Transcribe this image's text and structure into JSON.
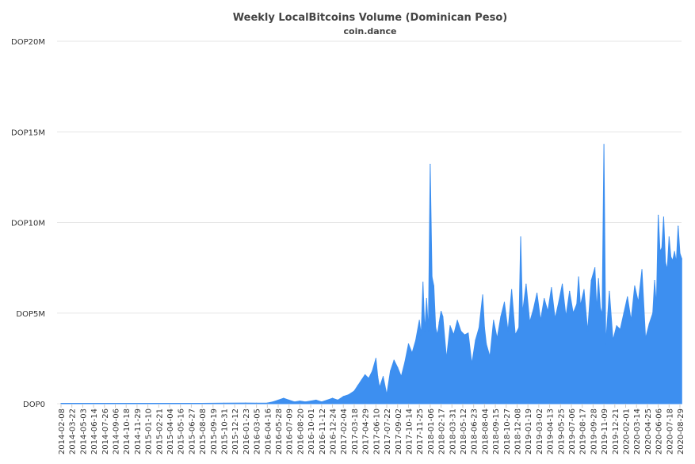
{
  "chart_data": {
    "type": "area",
    "title": "Weekly LocalBitcoins Volume (Dominican Peso)",
    "subtitle": "coin.dance",
    "xlabel": "",
    "ylabel": "",
    "ylim": [
      0,
      20000000
    ],
    "grid": true,
    "legend": "none",
    "color": "#3d8ff0",
    "y_ticks": [
      {
        "value": 0,
        "label": "DOP0"
      },
      {
        "value": 5000000,
        "label": "DOP5M"
      },
      {
        "value": 10000000,
        "label": "DOP10M"
      },
      {
        "value": 15000000,
        "label": "DOP15M"
      },
      {
        "value": 20000000,
        "label": "DOP20M"
      }
    ],
    "x_tick_labels": [
      "2014-02-08",
      "2014-03-22",
      "2014-05-03",
      "2014-06-14",
      "2014-07-26",
      "2014-09-06",
      "2014-10-18",
      "2014-11-29",
      "2015-01-10",
      "2015-02-21",
      "2015-04-04",
      "2015-05-16",
      "2015-06-27",
      "2015-08-08",
      "2015-09-19",
      "2015-10-31",
      "2015-12-12",
      "2016-01-23",
      "2016-03-05",
      "2016-04-16",
      "2016-05-28",
      "2016-07-09",
      "2016-08-20",
      "2016-10-01",
      "2016-11-12",
      "2016-12-24",
      "2017-02-04",
      "2017-03-18",
      "2017-04-29",
      "2017-06-10",
      "2017-07-22",
      "2017-09-02",
      "2017-10-14",
      "2017-11-25",
      "2018-01-06",
      "2018-02-17",
      "2018-03-31",
      "2018-05-12",
      "2018-06-23",
      "2018-08-04",
      "2018-09-15",
      "2018-10-27",
      "2018-12-08",
      "2019-01-19",
      "2019-03-02",
      "2019-04-13",
      "2019-05-25",
      "2019-07-06",
      "2019-08-17",
      "2019-09-28",
      "2019-11-09",
      "2019-12-21",
      "2020-02-01",
      "2020-03-14",
      "2020-04-25",
      "2020-06-06",
      "2020-07-18",
      "2020-08-29"
    ],
    "x": [
      "2014-02-08",
      "2014-06-14",
      "2014-10-18",
      "2015-02-21",
      "2015-06-27",
      "2015-10-31",
      "2016-01-23",
      "2016-03-05",
      "2016-04-16",
      "2016-05-07",
      "2016-05-28",
      "2016-06-18",
      "2016-07-09",
      "2016-07-30",
      "2016-08-20",
      "2016-09-10",
      "2016-10-01",
      "2016-10-22",
      "2016-11-12",
      "2016-12-03",
      "2016-12-24",
      "2017-01-14",
      "2017-02-04",
      "2017-02-25",
      "2017-03-18",
      "2017-04-01",
      "2017-04-15",
      "2017-04-29",
      "2017-05-13",
      "2017-05-27",
      "2017-06-10",
      "2017-06-17",
      "2017-06-24",
      "2017-07-08",
      "2017-07-22",
      "2017-08-05",
      "2017-08-19",
      "2017-09-02",
      "2017-09-16",
      "2017-09-30",
      "2017-10-14",
      "2017-10-28",
      "2017-11-11",
      "2017-11-25",
      "2017-12-02",
      "2017-12-09",
      "2017-12-16",
      "2017-12-23",
      "2017-12-30",
      "2018-01-06",
      "2018-01-13",
      "2018-01-20",
      "2018-01-27",
      "2018-02-03",
      "2018-02-10",
      "2018-02-17",
      "2018-02-24",
      "2018-03-10",
      "2018-03-24",
      "2018-04-07",
      "2018-04-21",
      "2018-05-05",
      "2018-05-19",
      "2018-06-02",
      "2018-06-16",
      "2018-06-30",
      "2018-07-14",
      "2018-07-28",
      "2018-08-04",
      "2018-08-11",
      "2018-08-25",
      "2018-09-08",
      "2018-09-22",
      "2018-10-06",
      "2018-10-20",
      "2018-11-03",
      "2018-11-17",
      "2018-12-01",
      "2018-12-15",
      "2018-12-22",
      "2018-12-29",
      "2019-01-12",
      "2019-01-26",
      "2019-02-09",
      "2019-02-23",
      "2019-03-09",
      "2019-03-23",
      "2019-04-06",
      "2019-04-20",
      "2019-05-04",
      "2019-05-18",
      "2019-06-01",
      "2019-06-15",
      "2019-06-29",
      "2019-07-13",
      "2019-07-27",
      "2019-08-03",
      "2019-08-10",
      "2019-08-24",
      "2019-09-07",
      "2019-09-21",
      "2019-10-05",
      "2019-10-12",
      "2019-10-19",
      "2019-10-26",
      "2019-11-02",
      "2019-11-09",
      "2019-11-16",
      "2019-11-30",
      "2019-12-14",
      "2019-12-28",
      "2020-01-11",
      "2020-01-25",
      "2020-02-08",
      "2020-02-22",
      "2020-03-07",
      "2020-03-21",
      "2020-04-04",
      "2020-04-18",
      "2020-05-02",
      "2020-05-16",
      "2020-05-23",
      "2020-05-30",
      "2020-06-06",
      "2020-06-13",
      "2020-06-20",
      "2020-06-27",
      "2020-07-04",
      "2020-07-11",
      "2020-07-18",
      "2020-07-25",
      "2020-08-01",
      "2020-08-08",
      "2020-08-15",
      "2020-08-22",
      "2020-08-29",
      "2020-09-05"
    ],
    "values": [
      20000,
      20000,
      20000,
      20000,
      20000,
      30000,
      40000,
      30000,
      40000,
      100000,
      200000,
      300000,
      200000,
      100000,
      150000,
      100000,
      150000,
      200000,
      100000,
      200000,
      300000,
      200000,
      400000,
      500000,
      700000,
      1000000,
      1300000,
      1600000,
      1400000,
      1800000,
      2500000,
      1500000,
      900000,
      1500000,
      500000,
      1800000,
      2400000,
      2000000,
      1500000,
      2300000,
      3300000,
      2800000,
      3500000,
      4600000,
      3800000,
      6700000,
      4000000,
      5800000,
      4000000,
      13200000,
      7000000,
      6500000,
      4200000,
      3800000,
      4500000,
      5100000,
      4800000,
      2500000,
      4300000,
      3800000,
      4600000,
      4000000,
      3800000,
      3900000,
      2200000,
      3500000,
      4200000,
      6000000,
      4200000,
      3300000,
      2600000,
      4600000,
      3600000,
      4800000,
      5600000,
      4000000,
      6300000,
      3800000,
      4200000,
      9200000,
      5000000,
      6600000,
      4500000,
      5200000,
      6100000,
      4600000,
      5800000,
      5100000,
      6400000,
      4700000,
      5600000,
      6600000,
      4800000,
      6200000,
      5000000,
      5500000,
      7000000,
      5400000,
      6300000,
      4000000,
      6800000,
      7500000,
      5200000,
      6900000,
      5300000,
      4900000,
      14300000,
      3300000,
      6200000,
      3500000,
      4300000,
      4100000,
      5000000,
      5900000,
      4600000,
      6500000,
      5600000,
      7400000,
      3600000,
      4400000,
      5000000,
      6800000,
      5400000,
      10400000,
      8400000,
      8600000,
      10300000,
      7800000,
      7400000,
      9200000,
      8100000,
      7900000,
      8400000,
      7800000,
      9800000,
      8300000,
      8000000
    ]
  }
}
